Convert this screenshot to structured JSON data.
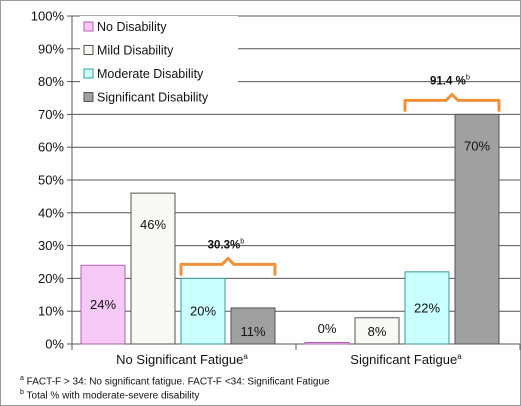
{
  "chart_data": {
    "type": "bar",
    "categories": [
      "No Significant Fatigue",
      "Significant Fatigue"
    ],
    "category_superscripts": [
      "a",
      "a"
    ],
    "series": [
      {
        "name": "No Disability",
        "values": [
          24,
          0
        ],
        "color": "#f5c8f5",
        "stroke": "#b060b0"
      },
      {
        "name": "Mild Disability",
        "values": [
          46,
          8
        ],
        "color": "#f9f8f3",
        "stroke": "#555555"
      },
      {
        "name": "Moderate Disability",
        "values": [
          20,
          22
        ],
        "color": "#c9ffff",
        "stroke": "#3a9a9a"
      },
      {
        "name": "Significant Disability",
        "values": [
          11,
          70
        ],
        "color": "#a0a0a0",
        "stroke": "#555555"
      }
    ],
    "data_labels": [
      [
        "24%",
        "46%",
        "20%",
        "11%"
      ],
      [
        "0%",
        "8%",
        "22%",
        "70%"
      ]
    ],
    "ylim": [
      0,
      100
    ],
    "yticks": [
      0,
      10,
      20,
      30,
      40,
      50,
      60,
      70,
      80,
      90,
      100
    ],
    "ytick_labels": [
      "0%",
      "10%",
      "20%",
      "30%",
      "40%",
      "50%",
      "60%",
      "70%",
      "80%",
      "90%",
      "100%"
    ],
    "grid": true,
    "legend_position": "top-left",
    "annotations": [
      {
        "text": "30.3%",
        "sup": "b",
        "category": 0
      },
      {
        "text": "91.4 %",
        "sup": "b",
        "category": 1
      }
    ],
    "bracket_color": "#f0913a"
  },
  "footnotes": [
    {
      "sup": "a",
      "text": " FACT-F > 34: No significant fatigue. FACT-F <34: Significant Fatigue"
    },
    {
      "sup": "b",
      "text": " Total % with moderate-severe disability"
    }
  ]
}
